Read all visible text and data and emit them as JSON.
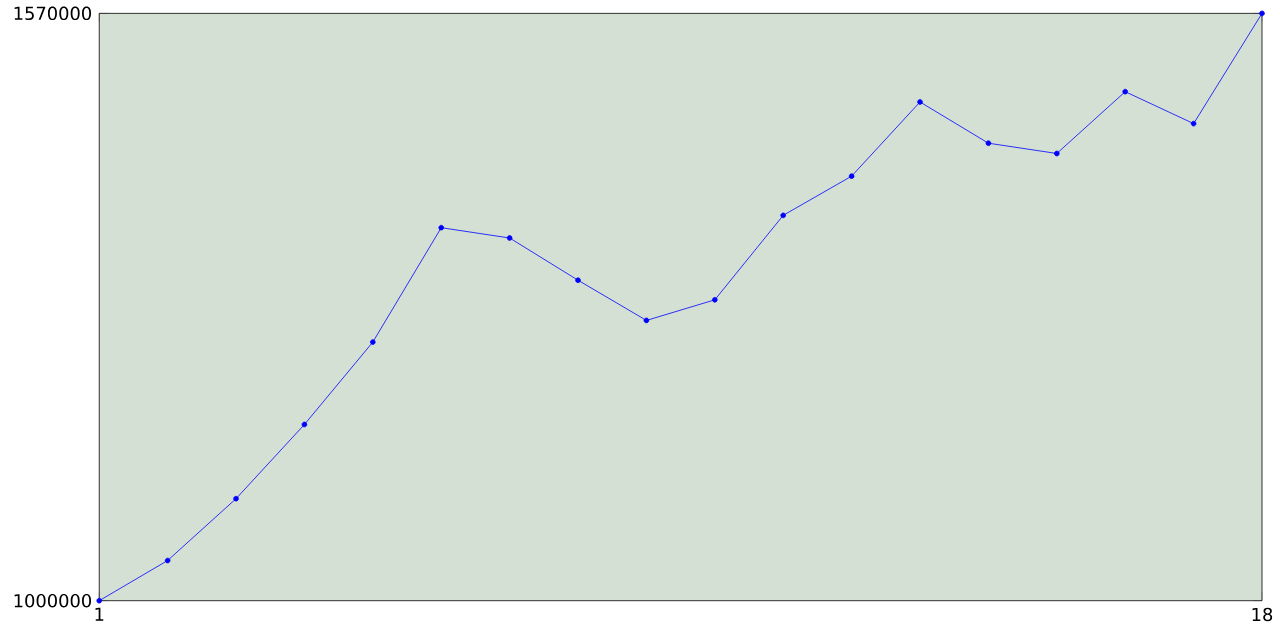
{
  "chart_data": {
    "type": "line",
    "x": [
      1,
      2,
      3,
      4,
      5,
      6,
      7,
      8,
      9,
      10,
      11,
      12,
      13,
      14,
      15,
      16,
      17,
      18
    ],
    "series": [
      {
        "color": "#0000ff",
        "values": [
          1000000,
          1039000,
          1099000,
          1171000,
          1251000,
          1362000,
          1352000,
          1311000,
          1272000,
          1292000,
          1374000,
          1412000,
          1484000,
          1444000,
          1434000,
          1494000,
          1463000,
          1570000
        ]
      }
    ],
    "xlim": [
      1,
      18
    ],
    "xticks": [
      1,
      18
    ],
    "ylim": [
      1000000,
      1570000
    ],
    "yticks": [
      1000000,
      1570000
    ],
    "grid": false,
    "marker": "circle",
    "line_style": "solid"
  }
}
